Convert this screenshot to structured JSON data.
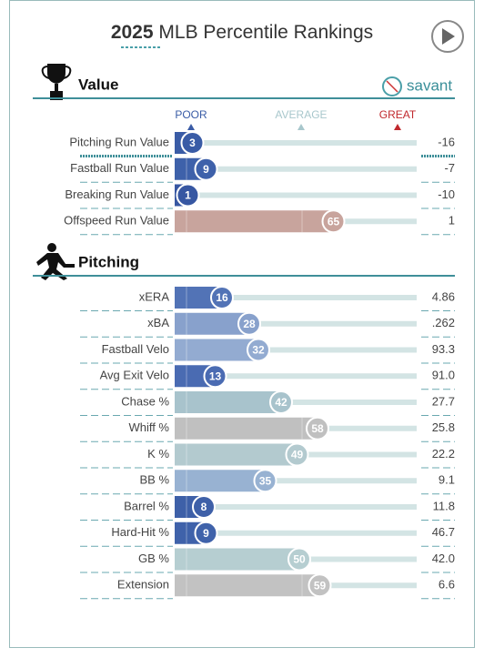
{
  "header": {
    "title_year": "2025",
    "title_rest": "MLB Percentile Rankings"
  },
  "logo": "savant",
  "scale": {
    "poor": "POOR",
    "average": "AVERAGE",
    "great": "GREAT"
  },
  "sections": [
    {
      "title": "Value",
      "rows": [
        {
          "label": "Pitching Run Value",
          "percentile": 3,
          "value": "-16",
          "color": "#3a5ca6"
        },
        {
          "label": "Fastball Run Value",
          "percentile": 9,
          "value": "-7",
          "color": "#3e61aa"
        },
        {
          "label": "Breaking Run Value",
          "percentile": 1,
          "value": "-10",
          "color": "#3757a2"
        },
        {
          "label": "Offspeed Run Value",
          "percentile": 65,
          "value": "1",
          "color": "#c8a49d"
        }
      ]
    },
    {
      "title": "Pitching",
      "rows": [
        {
          "label": "xERA",
          "percentile": 16,
          "value": "4.86",
          "color": "#5273b6"
        },
        {
          "label": "xBA",
          "percentile": 28,
          "value": ".262",
          "color": "#88a1cc"
        },
        {
          "label": "Fastball Velo",
          "percentile": 32,
          "value": "93.3",
          "color": "#93abd1"
        },
        {
          "label": "Avg Exit Velo",
          "percentile": 13,
          "value": "91.0",
          "color": "#4a6bb2"
        },
        {
          "label": "Chase %",
          "percentile": 42,
          "value": "27.7",
          "color": "#a8c3cc"
        },
        {
          "label": "Whiff %",
          "percentile": 58,
          "value": "25.8",
          "color": "#c0c0c0"
        },
        {
          "label": "K %",
          "percentile": 49,
          "value": "22.2",
          "color": "#b3cacf"
        },
        {
          "label": "BB %",
          "percentile": 35,
          "value": "9.1",
          "color": "#98b2d2"
        },
        {
          "label": "Barrel %",
          "percentile": 8,
          "value": "11.8",
          "color": "#3e60a8"
        },
        {
          "label": "Hard-Hit %",
          "percentile": 9,
          "value": "46.7",
          "color": "#3f62aa"
        },
        {
          "label": "GB %",
          "percentile": 50,
          "value": "42.0",
          "color": "#b6ced1"
        },
        {
          "label": "Extension",
          "percentile": 59,
          "value": "6.6",
          "color": "#c2c2c2"
        }
      ]
    }
  ]
}
